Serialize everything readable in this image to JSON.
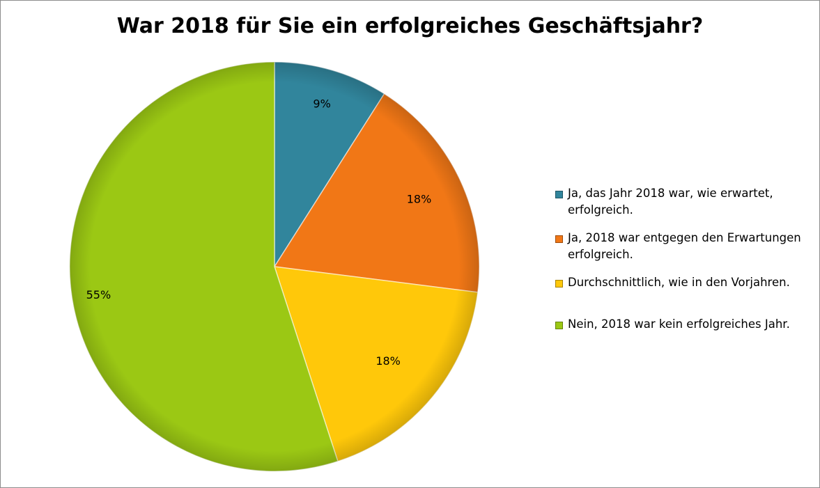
{
  "chart_data": {
    "type": "pie",
    "title": "War 2018 für Sie ein erfolgreiches Geschäftsjahr?",
    "legend_position": "right",
    "categories": [
      "Ja, das Jahr 2018 war, wie erwartet, erfolgreich.",
      "Ja, 2018 war entgegen den Erwartungen erfolgreich.",
      "Durchschnittlich, wie in den Vorjahren.",
      "Nein, 2018 war kein erfolgreiches Jahr."
    ],
    "values": [
      9,
      18,
      18,
      55
    ],
    "data_labels": [
      "9%",
      "18%",
      "18%",
      "55%"
    ],
    "colors": [
      "#31859c",
      "#f17716",
      "#ffc80a",
      "#9bc814"
    ]
  }
}
